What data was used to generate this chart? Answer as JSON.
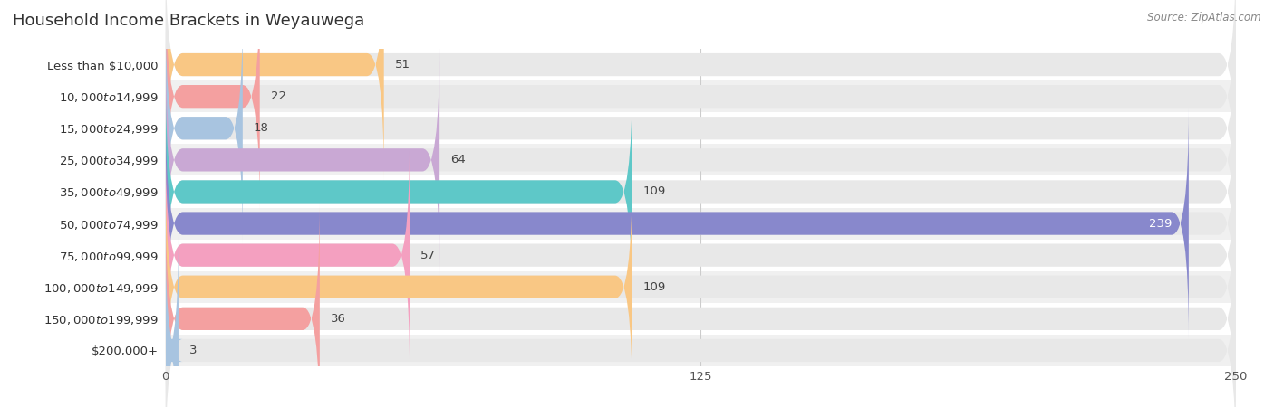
{
  "title": "Household Income Brackets in Weyauwega",
  "source": "Source: ZipAtlas.com",
  "categories": [
    "Less than $10,000",
    "$10,000 to $14,999",
    "$15,000 to $24,999",
    "$25,000 to $34,999",
    "$35,000 to $49,999",
    "$50,000 to $74,999",
    "$75,000 to $99,999",
    "$100,000 to $149,999",
    "$150,000 to $199,999",
    "$200,000+"
  ],
  "values": [
    51,
    22,
    18,
    64,
    109,
    239,
    57,
    109,
    36,
    3
  ],
  "bar_colors": [
    "#f9c784",
    "#f4a0a0",
    "#a8c4e0",
    "#c9a8d4",
    "#5ec8c8",
    "#8888cc",
    "#f4a0c0",
    "#f9c784",
    "#f4a0a0",
    "#a8c4e0"
  ],
  "xlim": [
    0,
    250
  ],
  "xticks": [
    0,
    125,
    250
  ],
  "background_color": "#ffffff",
  "row_colors": [
    "#ffffff",
    "#f0f0f0"
  ],
  "bar_background_color": "#e8e8e8",
  "title_fontsize": 13,
  "label_fontsize": 9.5,
  "value_fontsize": 9.5,
  "tick_fontsize": 9.5
}
